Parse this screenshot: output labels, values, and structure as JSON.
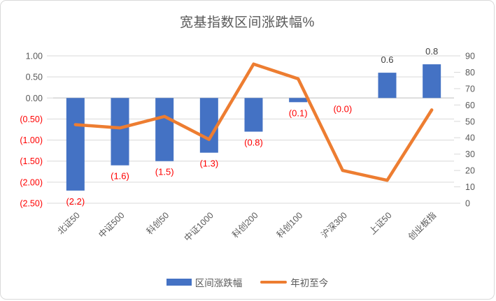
{
  "chart_data": {
    "type": "bar",
    "title": "宽基指数区间涨跌幅%",
    "categories": [
      "北证50",
      "中证500",
      "科创50",
      "中证1000",
      "科创200",
      "科创100",
      "沪深300",
      "上证50",
      "创业板指"
    ],
    "series": [
      {
        "name": "区间涨跌幅",
        "type": "bar",
        "axis": "left",
        "values": [
          -2.2,
          -1.6,
          -1.5,
          -1.3,
          -0.8,
          -0.1,
          0.0,
          0.6,
          0.8
        ],
        "labels": [
          "(2.2)",
          "(1.6)",
          "(1.5)",
          "(1.3)",
          "(0.8)",
          "(0.1)",
          "(0.0)",
          "0.6",
          "0.8"
        ]
      },
      {
        "name": "年初至今",
        "type": "line",
        "axis": "right",
        "values": [
          48,
          46,
          53,
          39,
          85,
          76,
          20,
          14,
          57
        ]
      }
    ],
    "left_axis": {
      "min": -2.5,
      "max": 1.0,
      "step": 0.5,
      "ticks": [
        "1.00",
        "0.50",
        "0.00",
        "(0.50)",
        "(1.00)",
        "(1.50)",
        "(2.00)",
        "(2.50)"
      ]
    },
    "right_axis": {
      "min": 0,
      "max": 90,
      "step": 10,
      "ticks": [
        "90",
        "80",
        "70",
        "60",
        "50",
        "40",
        "30",
        "20",
        "10",
        "0"
      ]
    },
    "grid": true,
    "legend_position": "bottom",
    "colors": {
      "bar": "#4472C4",
      "line": "#ED7D31",
      "negative_label": "#FF0000",
      "positive_label": "#404040",
      "axis_text": "#595959",
      "negative_axis_text": "#FF0000",
      "gridline": "#D9D9D9",
      "zero_line": "#C6C6C6",
      "border": "#D9D9D9"
    }
  }
}
